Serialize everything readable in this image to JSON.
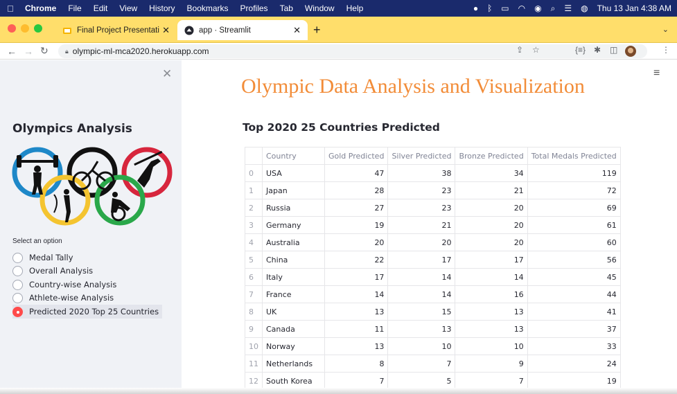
{
  "menubar": {
    "app": "Chrome",
    "items": [
      "File",
      "Edit",
      "View",
      "History",
      "Bookmarks",
      "Profiles",
      "Tab",
      "Window",
      "Help"
    ],
    "clock": "Thu 13 Jan  4:38 AM"
  },
  "tabs": [
    {
      "title": "Final Project Presentation - Go",
      "close": "✕"
    },
    {
      "title": "app · Streamlit",
      "close": "✕"
    }
  ],
  "toolbar": {
    "url": "olympic-ml-mca2020.herokuapp.com"
  },
  "sidebar": {
    "title": "Olympics Analysis",
    "select_label": "Select an option",
    "options": [
      "Medal Tally",
      "Overall Analysis",
      "Country-wise Analysis",
      "Athlete-wise Analysis",
      "Predicted 2020 Top 25 Countries"
    ],
    "selected_index": 4
  },
  "main": {
    "title": "Olympic Data Analysis and Visualization",
    "subheader": "Top 2020 25 Countries Predicted",
    "table": {
      "columns": [
        "",
        "Country",
        "Gold Predicted",
        "Silver Predicted",
        "Bronze Predicted",
        "Total Medals Predicted"
      ],
      "rows": [
        [
          "0",
          "USA",
          "47",
          "38",
          "34",
          "119"
        ],
        [
          "1",
          "Japan",
          "28",
          "23",
          "21",
          "72"
        ],
        [
          "2",
          "Russia",
          "27",
          "23",
          "20",
          "69"
        ],
        [
          "3",
          "Germany",
          "19",
          "21",
          "20",
          "61"
        ],
        [
          "4",
          "Australia",
          "20",
          "20",
          "20",
          "60"
        ],
        [
          "5",
          "China",
          "22",
          "17",
          "17",
          "56"
        ],
        [
          "6",
          "Italy",
          "17",
          "14",
          "14",
          "45"
        ],
        [
          "7",
          "France",
          "14",
          "14",
          "16",
          "44"
        ],
        [
          "8",
          "UK",
          "13",
          "15",
          "13",
          "41"
        ],
        [
          "9",
          "Canada",
          "11",
          "13",
          "13",
          "37"
        ],
        [
          "10",
          "Norway",
          "13",
          "10",
          "10",
          "33"
        ],
        [
          "11",
          "Netherlands",
          "8",
          "7",
          "9",
          "24"
        ],
        [
          "12",
          "South Korea",
          "7",
          "5",
          "7",
          "19"
        ]
      ]
    }
  },
  "colors": {
    "title": "#f28c38",
    "tabstrip": "#ffde6b",
    "radio_selected": "#ff4b4b",
    "ring_blue": "#1e88c8",
    "ring_yellow": "#f4c430",
    "ring_black": "#111111",
    "ring_green": "#2aa84a",
    "ring_red": "#d7263d"
  },
  "icons": {
    "apple": "apple-icon",
    "close": "close-icon",
    "hamburger": "hamburger-menu-icon"
  }
}
